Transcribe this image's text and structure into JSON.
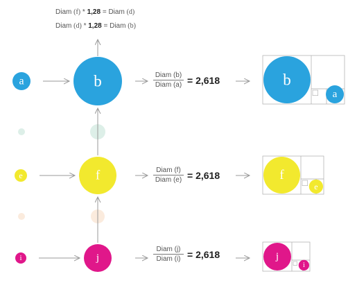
{
  "header_notes": [
    {
      "pre": "Diam ",
      "ref1": "(f)",
      "mul": " * ",
      "factor": "1,28",
      "eq": " = Diam ",
      "ref2": "(d)"
    },
    {
      "pre": "Diam ",
      "ref1": "(d)",
      "mul": " * ",
      "factor": "1,28",
      "eq": " = Diam ",
      "ref2": "(b)"
    }
  ],
  "rows": [
    {
      "color": "#2AA3DE",
      "small_label": "a",
      "big_label": "b",
      "numerator": "Diam (b)",
      "denominator": "Diam (a)",
      "ratio": "= 2,618",
      "ghost_color": "#DDEFE8"
    },
    {
      "color": "#F2E92E",
      "small_label": "e",
      "big_label": "f",
      "numerator": "Diam (f)",
      "denominator": "Diam (e)",
      "ratio": "= 2,618",
      "ghost_color": "#FBEBDD"
    },
    {
      "color": "#E0178A",
      "small_label": "i",
      "big_label": "j",
      "numerator": "Diam (j)",
      "denominator": "Diam (i)",
      "ratio": "= 2,618"
    }
  ]
}
